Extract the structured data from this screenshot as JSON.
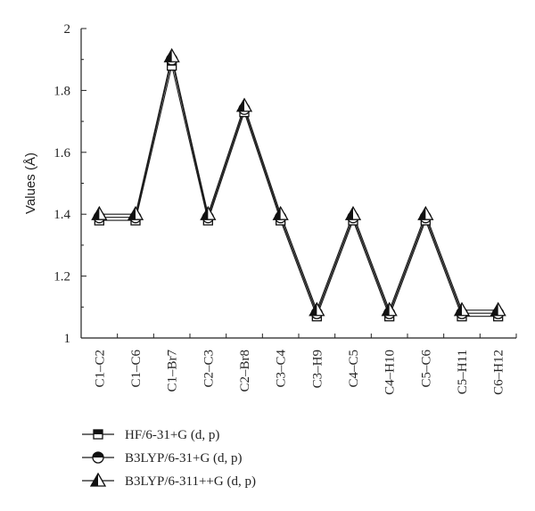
{
  "chart_data": {
    "type": "line",
    "ylabel": "Values (Å)",
    "xlabel": "",
    "ylim": [
      1,
      2
    ],
    "yticks": [
      "1",
      "1.2",
      "1.4",
      "1.6",
      "1.8",
      "2"
    ],
    "grid": false,
    "legend_position": "bottom-left",
    "categories": [
      "C1–C2",
      "C1–C6",
      "C1–Br7",
      "C2–C3",
      "C2–Br8",
      "C3–C4",
      "C3–H9",
      "C4–C5",
      "C4–H10",
      "C5–C6",
      "C5–H11",
      "C6–H12"
    ],
    "series": [
      {
        "name": "HF/6-31+G (d, p)",
        "marker": "square",
        "values": [
          1.38,
          1.38,
          1.88,
          1.38,
          1.73,
          1.38,
          1.07,
          1.38,
          1.07,
          1.38,
          1.07,
          1.07
        ]
      },
      {
        "name": "B3LYP/6-31+G (d, p)",
        "marker": "circle",
        "values": [
          1.39,
          1.39,
          1.9,
          1.39,
          1.74,
          1.39,
          1.08,
          1.39,
          1.08,
          1.39,
          1.08,
          1.08
        ]
      },
      {
        "name": "B3LYP/6-311++G (d, p)",
        "marker": "triangle",
        "values": [
          1.4,
          1.4,
          1.91,
          1.4,
          1.75,
          1.4,
          1.09,
          1.4,
          1.09,
          1.4,
          1.09,
          1.09
        ]
      }
    ],
    "colors": {
      "line": "#1a1a1a",
      "marker_fill": "#ffffff",
      "marker_stroke": "#111111"
    }
  }
}
